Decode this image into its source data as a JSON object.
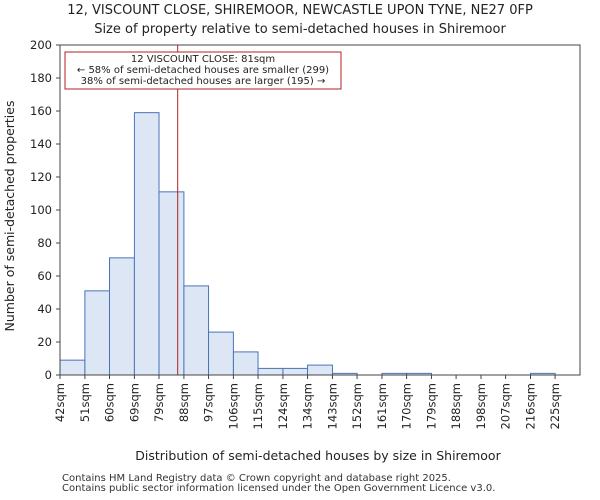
{
  "chart_data": {
    "type": "bar",
    "title": "12, VISCOUNT CLOSE, SHIREMOOR, NEWCASTLE UPON TYNE, NE27 0FP",
    "subtitle": "Size of property relative to semi-detached houses in Shiremoor",
    "xlabel": "Distribution of semi-detached houses by size in Shiremoor",
    "ylabel": "Number of semi-detached properties",
    "ylim": [
      0,
      200
    ],
    "yticks": [
      0,
      20,
      40,
      60,
      80,
      100,
      120,
      140,
      160,
      180,
      200
    ],
    "bin_edges": [
      37.5,
      46.7,
      55.8,
      65.0,
      74.1,
      83.3,
      92.4,
      101.6,
      110.7,
      119.9,
      129.0,
      138.2,
      147.3,
      156.5,
      165.6,
      174.8,
      183.9,
      193.1,
      202.2,
      211.4,
      220.5,
      229.7
    ],
    "categories": [
      "42sqm",
      "51sqm",
      "60sqm",
      "69sqm",
      "79sqm",
      "88sqm",
      "97sqm",
      "106sqm",
      "115sqm",
      "124sqm",
      "134sqm",
      "143sqm",
      "152sqm",
      "161sqm",
      "170sqm",
      "179sqm",
      "188sqm",
      "198sqm",
      "207sqm",
      "216sqm",
      "225sqm"
    ],
    "values": [
      9,
      51,
      71,
      159,
      111,
      54,
      26,
      14,
      4,
      4,
      6,
      1,
      0,
      1,
      1,
      0,
      0,
      0,
      0,
      1,
      0
    ],
    "property_value": 81,
    "annotation": {
      "line1": "12 VISCOUNT CLOSE: 81sqm",
      "line2": "← 58% of semi-detached houses are smaller (299)",
      "line3": "38% of semi-detached houses are larger (195) →"
    },
    "colors": {
      "bar_fill": "#dce6f5",
      "bar_edge": "#4a74b8",
      "marker": "#b22222",
      "annotation_border": "#b22222"
    }
  },
  "footer": {
    "line1": "Contains HM Land Registry data © Crown copyright and database right 2025.",
    "line2": "Contains public sector information licensed under the Open Government Licence v3.0."
  }
}
